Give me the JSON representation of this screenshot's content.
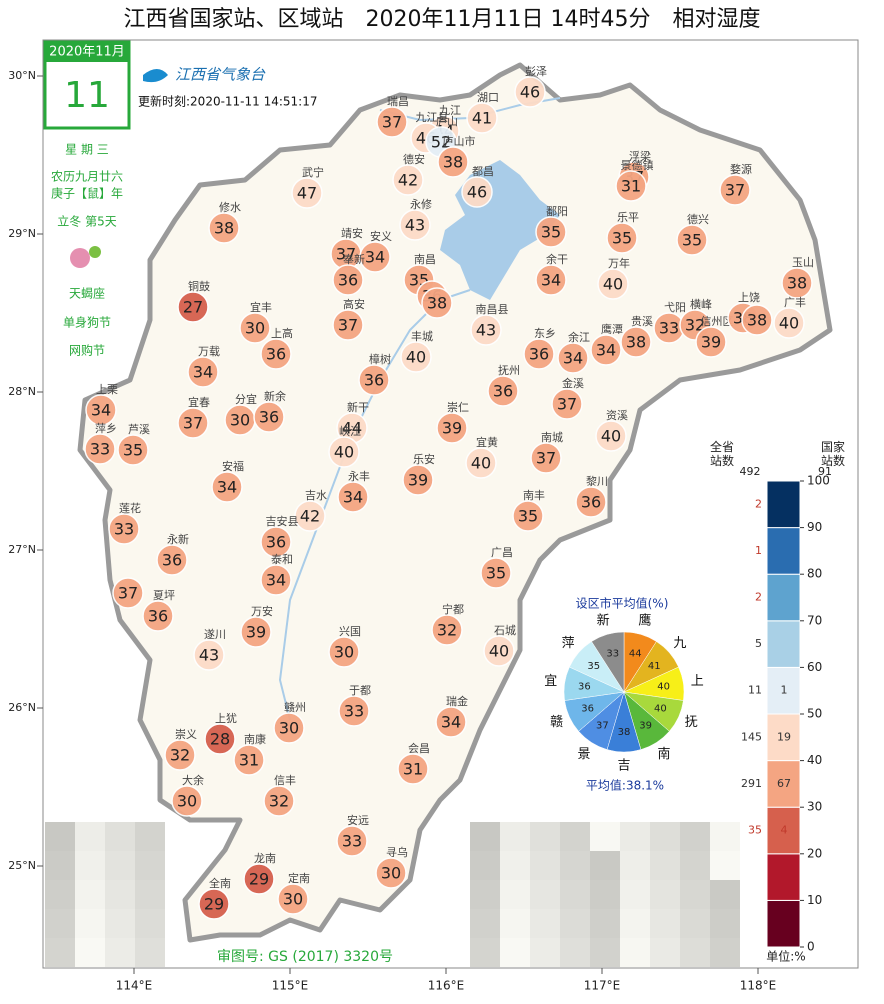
{
  "header": {
    "title": "江西省国家站、区域站　2020年11月11日 14时45分　相对湿度",
    "logo": "江西省气象台",
    "update_time": "更新时刻:2020-11-11 14:51:17",
    "map_number": "审图号: GS (2017) 3320号"
  },
  "calendar": {
    "month": "2020年11月",
    "day": "11",
    "weekday": "星 期 三",
    "lunar": "农历九月廿六",
    "year": "庚子【鼠】年",
    "solar_term": "立冬 第5天",
    "zodiac": "天蝎座",
    "festival_1": "单身狗节",
    "festival_2": "网购节"
  },
  "chart_data": {
    "type": "station-map",
    "xticks": [
      {
        "value": 114,
        "label": "114°E"
      },
      {
        "value": 115,
        "label": "115°E"
      },
      {
        "value": 116,
        "label": "116°E"
      },
      {
        "value": 117,
        "label": "117°E"
      },
      {
        "value": 118,
        "label": "118°E"
      }
    ],
    "yticks": [
      {
        "value": 30,
        "label": "30°N"
      },
      {
        "value": 29,
        "label": "29°N"
      },
      {
        "value": 28,
        "label": "28°N"
      },
      {
        "value": 27,
        "label": "27°N"
      },
      {
        "value": 26,
        "label": "26°N"
      },
      {
        "value": 25,
        "label": "25°N"
      }
    ],
    "stations": [
      {
        "name": "彭泽",
        "value": 46
      },
      {
        "name": "瑞昌",
        "value": 37
      },
      {
        "name": "九江",
        "value": 44
      },
      {
        "name": "湖口",
        "value": 41
      },
      {
        "name": "九江县",
        "value": 46
      },
      {
        "name": "庐山",
        "value": 52
      },
      {
        "name": "德安",
        "value": 42
      },
      {
        "name": "庐山市",
        "value": 38
      },
      {
        "name": "都昌",
        "value": 46
      },
      {
        "name": "武宁",
        "value": 47
      },
      {
        "name": "修水",
        "value": 38
      },
      {
        "name": "永修",
        "value": 43
      },
      {
        "name": "浮梁",
        "value": 37
      },
      {
        "name": "景德镇",
        "value": 31
      },
      {
        "name": "婺源",
        "value": 37
      },
      {
        "name": "鄱阳",
        "value": 35
      },
      {
        "name": "乐平",
        "value": 35
      },
      {
        "name": "德兴",
        "value": 35
      },
      {
        "name": "靖安",
        "value": 37
      },
      {
        "name": "安义",
        "value": 34
      },
      {
        "name": "奉新",
        "value": 36
      },
      {
        "name": "南昌",
        "value": 35
      },
      {
        "name": null,
        "value": 36
      },
      {
        "name": null,
        "value": 38
      },
      {
        "name": "南昌县",
        "value": 43
      },
      {
        "name": "余干",
        "value": 34
      },
      {
        "name": "万年",
        "value": 40
      },
      {
        "name": "玉山",
        "value": 38
      },
      {
        "name": "铜鼓",
        "value": 27
      },
      {
        "name": "宜丰",
        "value": 30
      },
      {
        "name": "高安",
        "value": 37
      },
      {
        "name": "上高",
        "value": 36
      },
      {
        "name": "丰城",
        "value": 40
      },
      {
        "name": "东乡",
        "value": 36
      },
      {
        "name": "余江",
        "value": 34
      },
      {
        "name": "鹰潭",
        "value": 34
      },
      {
        "name": "贵溪",
        "value": 38
      },
      {
        "name": "弋阳",
        "value": 33
      },
      {
        "name": "横峰",
        "value": 32
      },
      {
        "name": "信州区",
        "value": 39
      },
      {
        "name": "上饶",
        "value": 38
      },
      {
        "name": null,
        "value": 38
      },
      {
        "name": "广丰",
        "value": 40
      },
      {
        "name": "万载",
        "value": 34
      },
      {
        "name": "樟树",
        "value": 36
      },
      {
        "name": "抚州",
        "value": 36
      },
      {
        "name": "金溪",
        "value": 37
      },
      {
        "name": "上栗",
        "value": 34
      },
      {
        "name": "萍乡",
        "value": 33
      },
      {
        "name": "芦溪",
        "value": 35
      },
      {
        "name": "宜春",
        "value": 37
      },
      {
        "name": "分宜",
        "value": 30
      },
      {
        "name": "新余",
        "value": 36
      },
      {
        "name": "新干",
        "value": 44
      },
      {
        "name": "峡江",
        "value": 40
      },
      {
        "name": "崇仁",
        "value": 39
      },
      {
        "name": "宜黄",
        "value": 40
      },
      {
        "name": "资溪",
        "value": 40
      },
      {
        "name": "南城",
        "value": 37
      },
      {
        "name": "安福",
        "value": 34
      },
      {
        "name": "乐安",
        "value": 39
      },
      {
        "name": "永丰",
        "value": 34
      },
      {
        "name": "黎川",
        "value": 36
      },
      {
        "name": "吉水",
        "value": 42
      },
      {
        "name": "南丰",
        "value": 35
      },
      {
        "name": "莲花",
        "value": 33
      },
      {
        "name": "吉安县",
        "value": 36
      },
      {
        "name": "泰和",
        "value": 34
      },
      {
        "name": "永新",
        "value": 36
      },
      {
        "name": "广昌",
        "value": 35
      },
      {
        "name": null,
        "value": 37
      },
      {
        "name": "夏坪",
        "value": 36
      },
      {
        "name": "遂川",
        "value": 43
      },
      {
        "name": "万安",
        "value": 39
      },
      {
        "name": "兴国",
        "value": 30
      },
      {
        "name": "宁都",
        "value": 32
      },
      {
        "name": "石城",
        "value": 40
      },
      {
        "name": "于都",
        "value": 33
      },
      {
        "name": "瑞金",
        "value": 34
      },
      {
        "name": "赣州",
        "value": 30
      },
      {
        "name": "上犹",
        "value": 28
      },
      {
        "name": "崇义",
        "value": 32
      },
      {
        "name": "南康",
        "value": 31
      },
      {
        "name": "会昌",
        "value": 31
      },
      {
        "name": "大余",
        "value": 30
      },
      {
        "name": "信丰",
        "value": 32
      },
      {
        "name": "安远",
        "value": 33
      },
      {
        "name": "寻乌",
        "value": 30
      },
      {
        "name": "龙南",
        "value": 29
      },
      {
        "name": "全南",
        "value": 29
      },
      {
        "name": "定南",
        "value": 30
      }
    ],
    "colorbar": {
      "ticks": [
        0,
        10,
        20,
        30,
        40,
        50,
        60,
        70,
        80,
        90,
        100
      ],
      "colors": [
        "#67001f",
        "#b2182b",
        "#d6604d",
        "#f4a582",
        "#fddbc7",
        "#e4eef6",
        "#a9d0e6",
        "#5ea3cf",
        "#2a6db0",
        "#053061"
      ],
      "all_label": "全省\n站数",
      "national_label": "国家\n站数",
      "all_total": 492,
      "national_total": 91,
      "all_counts": [
        null,
        null,
        35,
        291,
        145,
        11,
        5,
        2,
        1,
        2
      ],
      "national_counts": [
        null,
        null,
        4,
        67,
        19,
        1,
        null,
        null,
        null,
        null
      ],
      "all_count_colors": [
        null,
        null,
        "#c0392b",
        "#333333",
        "#333333",
        "#333333",
        "#333333",
        "#c0392b",
        "#c0392b",
        "#c0392b"
      ],
      "national_count_colors": [
        null,
        null,
        "#c0392b",
        "#333333",
        "#333333",
        "#333333",
        null,
        null,
        null,
        null
      ],
      "unit": "单位:%"
    },
    "pie": {
      "title": "设区市平均值(%)",
      "labels": [
        "鹰",
        "九",
        "上",
        "抚",
        "南",
        "吉",
        "景",
        "赣",
        "宜",
        "萍",
        "新"
      ],
      "values": [
        44,
        41,
        40,
        40,
        39,
        38,
        37,
        36,
        36,
        35,
        33
      ],
      "colors": [
        "#f28a1c",
        "#e3b41f",
        "#f7ef18",
        "#a8d93c",
        "#59b83b",
        "#3a7fd8",
        "#4f8ee3",
        "#6eb6ea",
        "#9bd8ef",
        "#c9eef7",
        "#8c8c8c"
      ],
      "average": "平均值:38.1%"
    }
  }
}
